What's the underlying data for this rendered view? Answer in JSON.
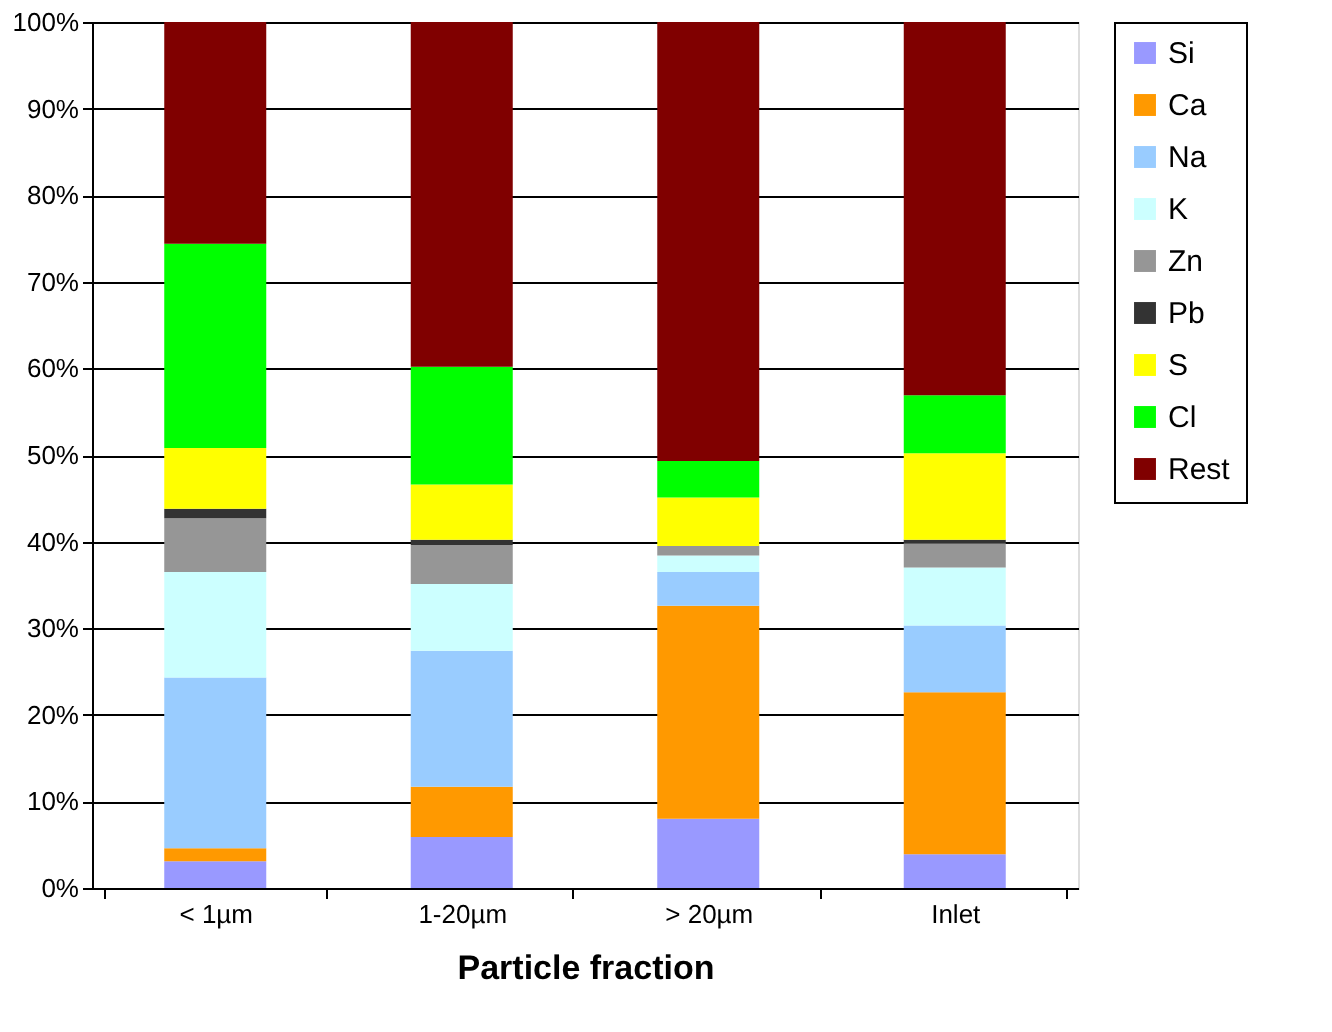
{
  "chart_data": {
    "type": "bar",
    "stacked": true,
    "xlabel": "Particle fraction",
    "categories": [
      "< 1µm",
      "1-20µm",
      "> 20µm",
      "Inlet"
    ],
    "series": [
      {
        "name": "Si",
        "color": "#9999ff",
        "values": [
          3.1,
          5.9,
          8.0,
          3.9
        ]
      },
      {
        "name": "Ca",
        "color": "#ff9900",
        "values": [
          1.5,
          5.8,
          24.6,
          18.7
        ]
      },
      {
        "name": "Na",
        "color": "#99ccff",
        "values": [
          19.7,
          15.7,
          3.9,
          7.7
        ]
      },
      {
        "name": "K",
        "color": "#ccffff",
        "values": [
          12.2,
          7.7,
          1.9,
          6.7
        ]
      },
      {
        "name": "Zn",
        "color": "#969696",
        "values": [
          6.2,
          4.5,
          1.1,
          2.8
        ]
      },
      {
        "name": "Pb",
        "color": "#333333",
        "values": [
          1.1,
          0.6,
          0,
          0.4
        ]
      },
      {
        "name": "S",
        "color": "#ffff00",
        "values": [
          7.0,
          6.4,
          5.6,
          10.0
        ]
      },
      {
        "name": "Cl",
        "color": "#00ff00",
        "values": [
          23.6,
          13.6,
          4.2,
          6.7
        ]
      },
      {
        "name": "Rest",
        "color": "#800000",
        "values": [
          25.6,
          39.8,
          50.7,
          43.1
        ]
      }
    ],
    "ylim": [
      0,
      100
    ],
    "yticks": [
      {
        "value": 0,
        "label": "0%"
      },
      {
        "value": 10,
        "label": "10%"
      },
      {
        "value": 20,
        "label": "20%"
      },
      {
        "value": 30,
        "label": "30%"
      },
      {
        "value": 40,
        "label": "40%"
      },
      {
        "value": 50,
        "label": "50%"
      },
      {
        "value": 60,
        "label": "60%"
      },
      {
        "value": 70,
        "label": "70%"
      },
      {
        "value": 80,
        "label": "80%"
      },
      {
        "value": 90,
        "label": "90%"
      },
      {
        "value": 100,
        "label": "100%"
      }
    ],
    "grid": "y",
    "legend": "right"
  }
}
